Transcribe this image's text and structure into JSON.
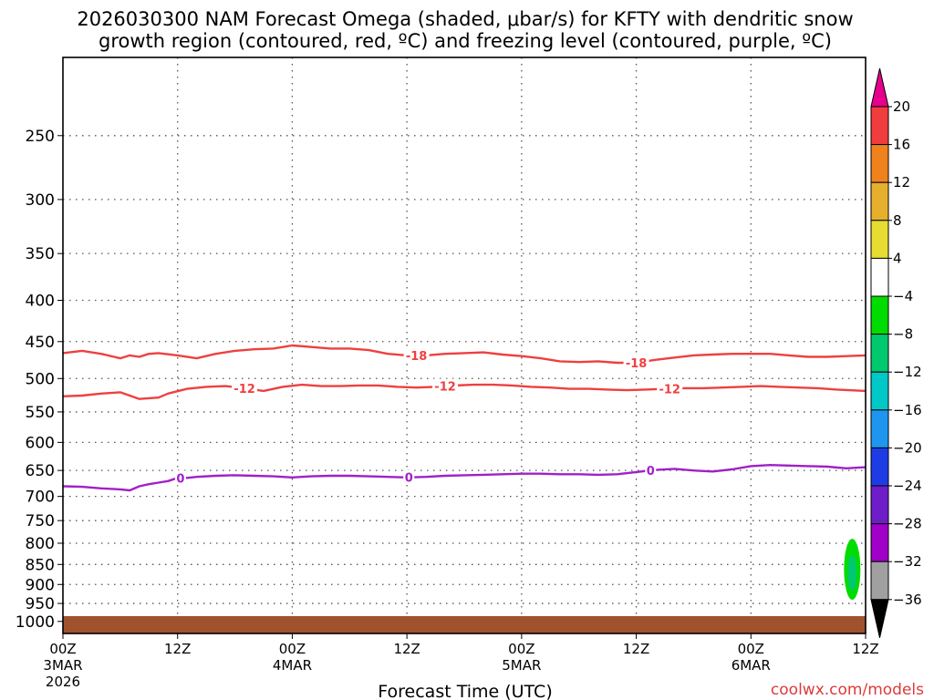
{
  "chart_data": {
    "type": "time-height",
    "title_line1": "2026030300 NAM Forecast Omega (shaded, μbar/s) for KFTY with dendritic snow",
    "title_line2": "growth region (contoured, red, ºC) and freezing level (contoured, purple, ºC)",
    "xlabel": "Forecast Time (UTC)",
    "credit": "coolwx.com/models",
    "x_range_hours": [
      0,
      84
    ],
    "x_ticks": [
      {
        "h": 0,
        "lines": [
          "00Z",
          "3MAR",
          "2026"
        ]
      },
      {
        "h": 12,
        "lines": [
          "12Z"
        ]
      },
      {
        "h": 24,
        "lines": [
          "00Z",
          "4MAR"
        ]
      },
      {
        "h": 36,
        "lines": [
          "12Z"
        ]
      },
      {
        "h": 48,
        "lines": [
          "00Z",
          "5MAR"
        ]
      },
      {
        "h": 60,
        "lines": [
          "12Z"
        ]
      },
      {
        "h": 72,
        "lines": [
          "00Z",
          "6MAR"
        ]
      },
      {
        "h": 84,
        "lines": [
          "12Z"
        ]
      }
    ],
    "y_axis": "pressure_hPa",
    "y_range_hPa": [
      1035,
      200
    ],
    "y_ticks": [
      250,
      300,
      350,
      400,
      450,
      500,
      550,
      600,
      650,
      700,
      750,
      800,
      850,
      900,
      950,
      1000
    ],
    "ground_hPa": 985,
    "ground_color": "#a0522d",
    "colorbar": {
      "labels": [
        20,
        16,
        12,
        8,
        4,
        -4,
        -8,
        -12,
        -16,
        -20,
        -24,
        -28,
        -32,
        -36
      ],
      "colors": [
        "#f03c3c",
        "#f0821e",
        "#e6af2d",
        "#e6dc32",
        "#ffffff",
        "#00dc00",
        "#00c86e",
        "#00c8c8",
        "#1e96f0",
        "#1e3ce6",
        "#6e1ec8",
        "#a000c8",
        "#a0a0a0"
      ],
      "top_arrow_color": "#e6008c",
      "bottom_arrow_color": "#000000"
    },
    "series": [
      {
        "name": "-18 C isotherm",
        "color": "#ee4040",
        "label": "-18",
        "label_at_hours": [
          37,
          60
        ],
        "hours": [
          0,
          2,
          4,
          6,
          7,
          8,
          9,
          10,
          12,
          14,
          16,
          18,
          20,
          22,
          24,
          26,
          28,
          30,
          32,
          34,
          36,
          38,
          40,
          42,
          44,
          46,
          48,
          50,
          52,
          54,
          56,
          58,
          60,
          62,
          64,
          66,
          68,
          70,
          72,
          74,
          76,
          78,
          80,
          82,
          84
        ],
        "hPa": [
          465,
          462,
          466,
          472,
          468,
          470,
          466,
          465,
          468,
          472,
          466,
          462,
          460,
          459,
          455,
          457,
          459,
          459,
          461,
          466,
          468,
          468,
          466,
          465,
          464,
          467,
          469,
          472,
          476,
          477,
          476,
          478,
          478,
          474,
          471,
          468,
          467,
          466,
          466,
          466,
          468,
          470,
          470,
          469,
          468
        ]
      },
      {
        "name": "-12 C isotherm",
        "color": "#ee4040",
        "label": "-12",
        "label_at_hours": [
          19,
          40,
          63.5
        ],
        "hours": [
          0,
          2,
          4,
          6,
          8,
          10,
          11,
          13,
          15,
          17,
          19,
          21,
          23,
          25,
          27,
          29,
          31,
          33,
          35,
          37,
          39,
          41,
          43,
          45,
          47,
          49,
          51,
          53,
          55,
          57,
          59,
          61,
          63,
          65,
          67,
          69,
          71,
          73,
          75,
          77,
          79,
          81,
          84
        ],
        "hPa": [
          526,
          525,
          522,
          520,
          530,
          528,
          522,
          515,
          512,
          511,
          514,
          518,
          512,
          509,
          511,
          511,
          510,
          510,
          512,
          513,
          512,
          510,
          509,
          509,
          510,
          512,
          513,
          515,
          515,
          516,
          517,
          516,
          515,
          514,
          514,
          513,
          512,
          511,
          512,
          513,
          514,
          516,
          518
        ]
      },
      {
        "name": "0 C isotherm (freezing level)",
        "color": "#a020c8",
        "label": "0",
        "label_at_hours": [
          12.3,
          36.2,
          61.5
        ],
        "hours": [
          0,
          2,
          4,
          6,
          7,
          8,
          9,
          10,
          11,
          12,
          13,
          14,
          16,
          18,
          20,
          22,
          24,
          26,
          28,
          30,
          32,
          34,
          36,
          38,
          40,
          42,
          44,
          46,
          48,
          50,
          52,
          54,
          56,
          58,
          60,
          62,
          64,
          66,
          68,
          70,
          72,
          74,
          76,
          78,
          80,
          82,
          84
        ],
        "hPa": [
          680,
          681,
          684,
          686,
          688,
          680,
          676,
          673,
          670,
          664,
          664,
          662,
          660,
          659,
          660,
          661,
          663,
          661,
          660,
          660,
          661,
          662,
          663,
          662,
          660,
          659,
          658,
          657,
          656,
          656,
          657,
          657,
          658,
          657,
          653,
          649,
          647,
          650,
          652,
          648,
          642,
          640,
          641,
          642,
          643,
          646,
          644
        ]
      }
    ],
    "omega_shading": [
      {
        "level_range": [
          -8,
          -4
        ],
        "color": "#00dc00",
        "hour_center": 82.6,
        "hPa_top": 790,
        "hPa_bottom": 940
      }
    ]
  }
}
